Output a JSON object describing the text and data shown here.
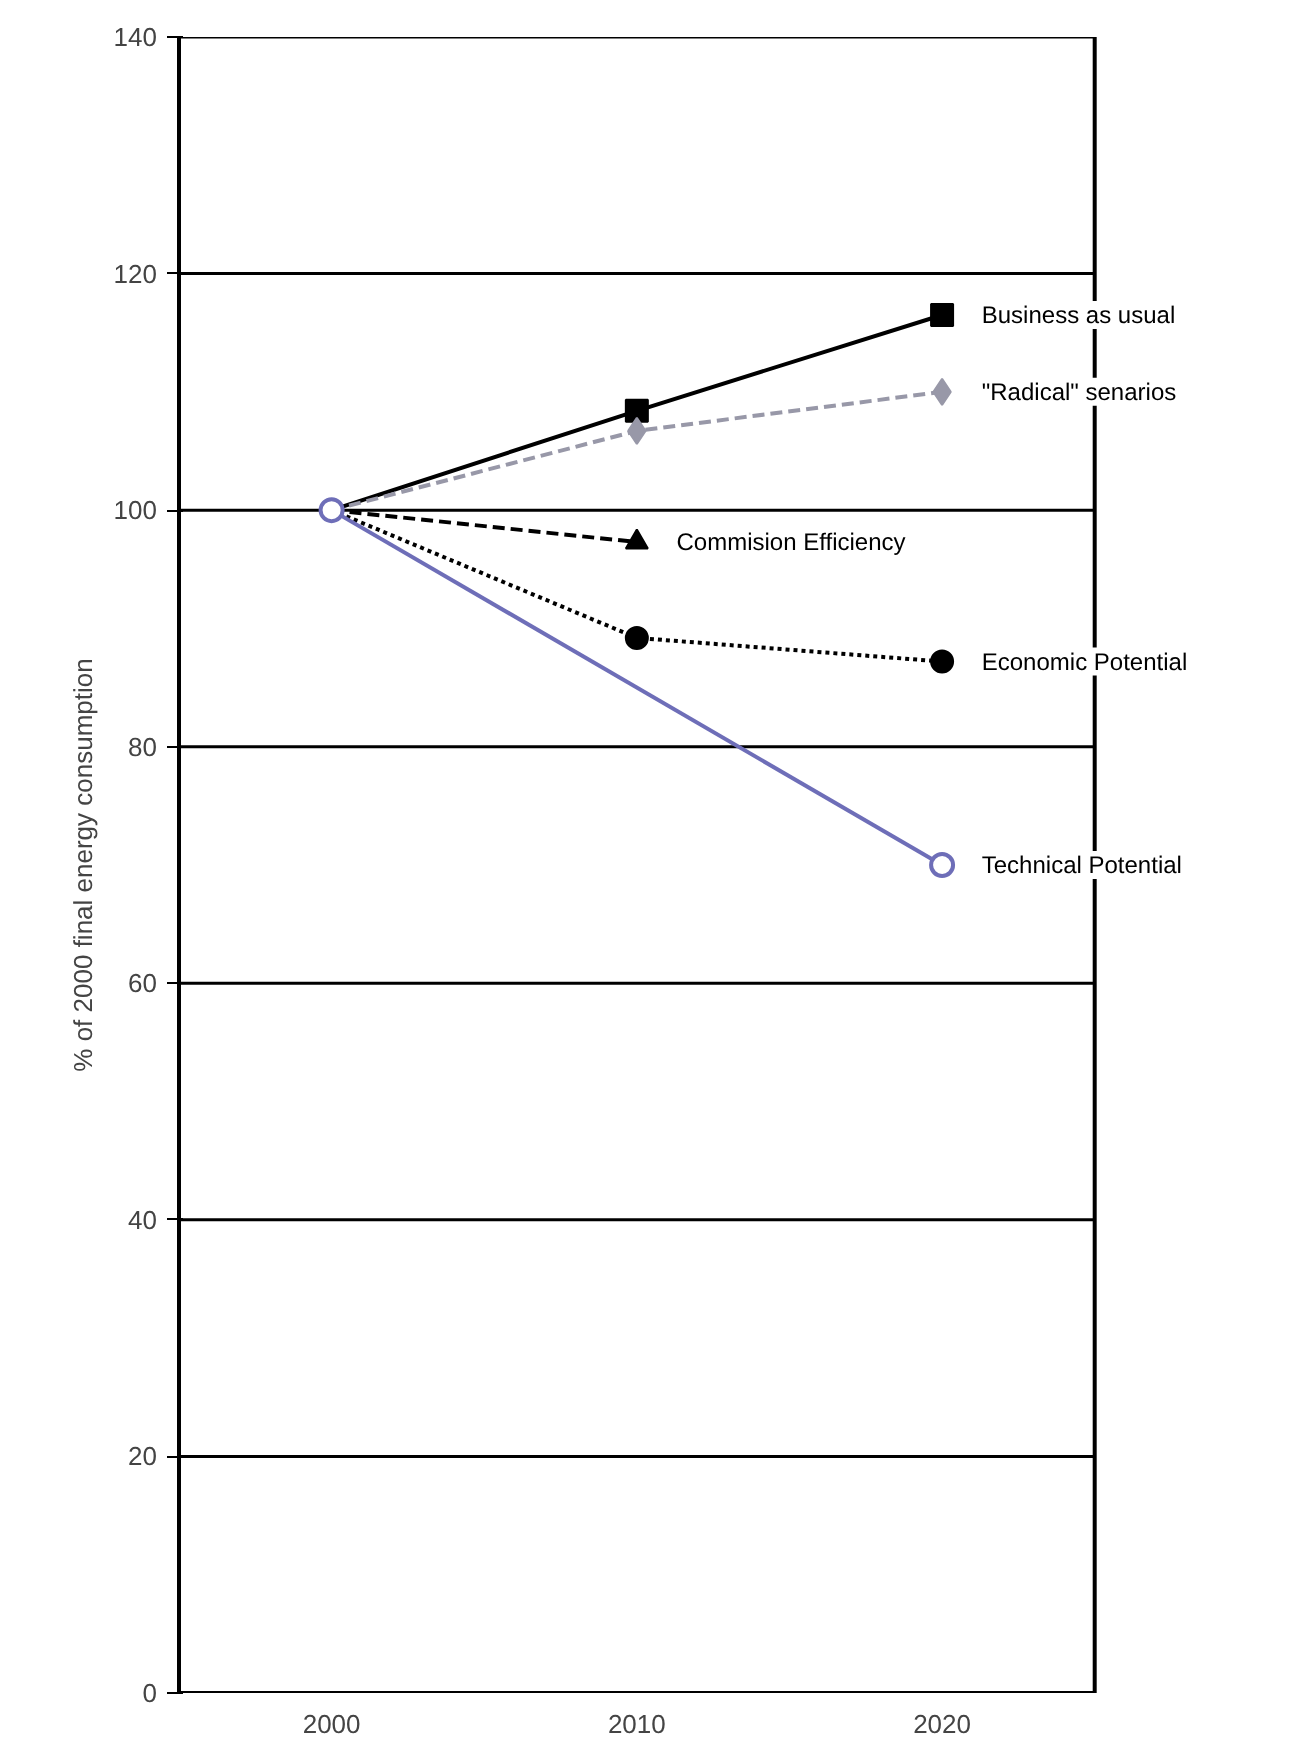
{
  "chart_data": {
    "type": "line",
    "ylabel": "% of 2000 final energy consumption",
    "categories": [
      "2000",
      "2010",
      "2020"
    ],
    "series": [
      {
        "name": "Business as usual",
        "color": "#000000",
        "marker": "square",
        "line_style": "solid",
        "values": [
          100,
          108.4,
          116.5
        ]
      },
      {
        "name": "\"Radical\" senarios",
        "color": "#9898a8",
        "marker": "diamond",
        "line_style": "dashed",
        "values": [
          100,
          106.7,
          110
        ]
      },
      {
        "name": "Commision Efficiency",
        "color": "#000000",
        "marker": "triangle",
        "line_style": "dashed",
        "values": [
          100,
          97.3,
          null
        ]
      },
      {
        "name": "Economic Potential",
        "color": "#000000",
        "marker": "circle",
        "line_style": "dotted",
        "values": [
          100,
          89.2,
          87.2
        ]
      },
      {
        "name": "Technical Potential",
        "color": "#6e6eb8",
        "marker": "circle",
        "line_style": "solid",
        "values": [
          100,
          null,
          70
        ]
      }
    ],
    "ylim": [
      0,
      140
    ],
    "yticks": [
      0,
      20,
      40,
      60,
      80,
      100,
      120,
      140
    ],
    "grid": "y",
    "legend": false
  }
}
